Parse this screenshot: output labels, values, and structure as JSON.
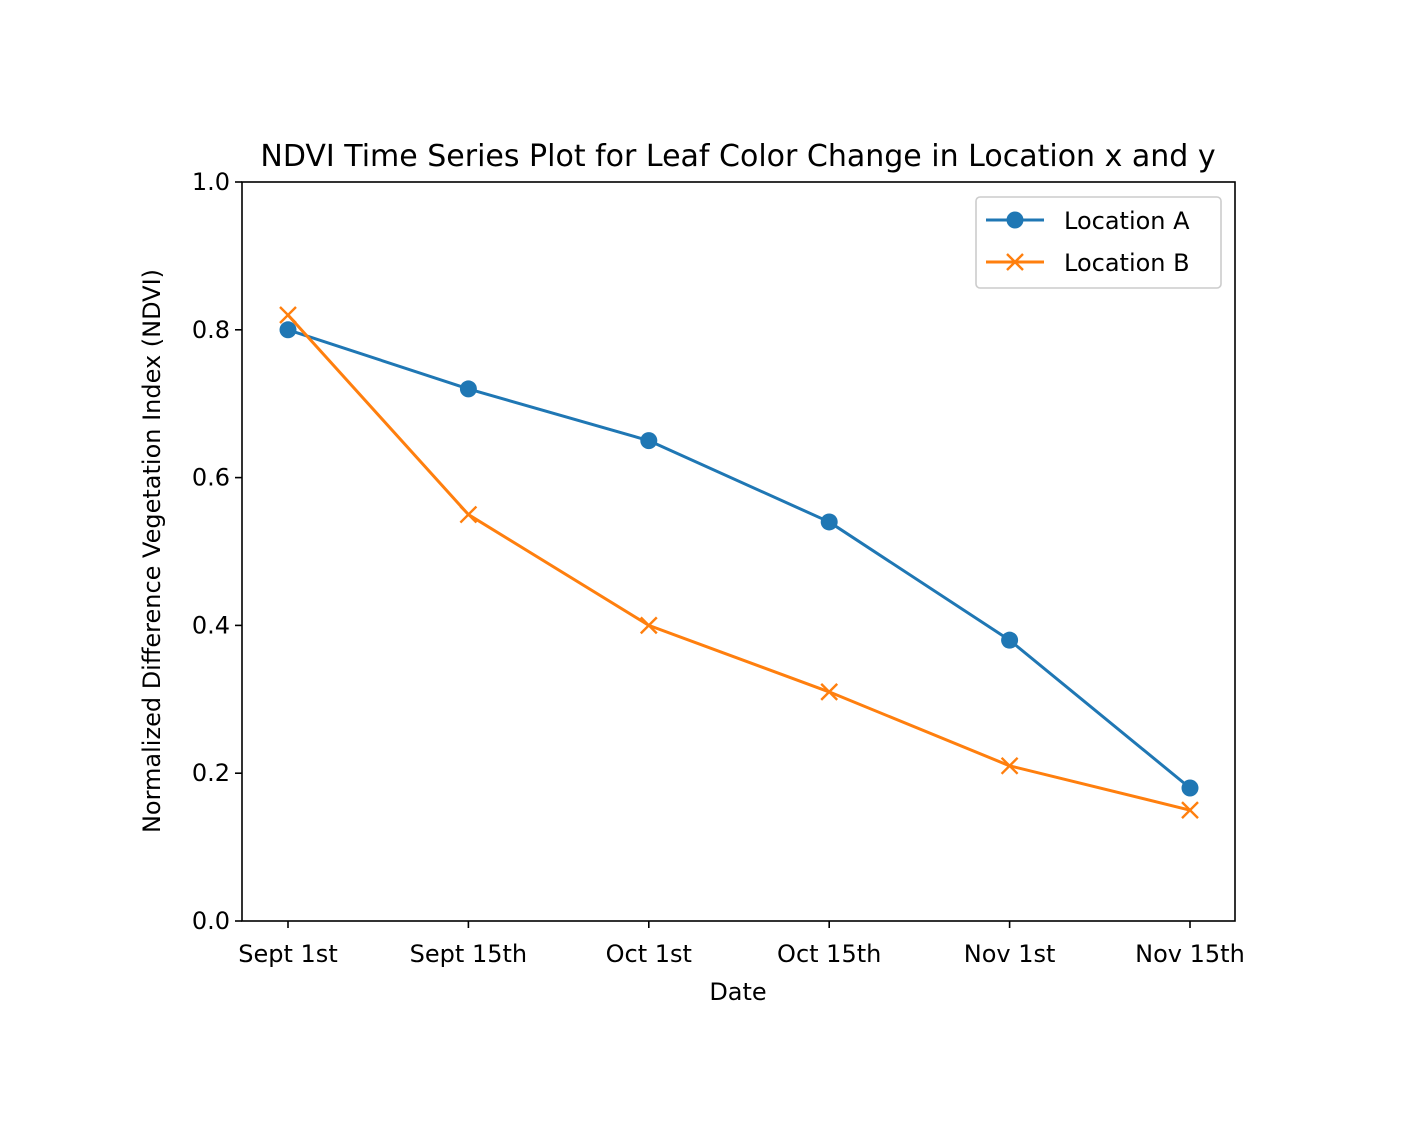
{
  "chart_data": {
    "type": "line",
    "title": "NDVI Time Series Plot for Leaf Color Change in Location x and y",
    "xlabel": "Date",
    "ylabel": "Normalized Difference Vegetation Index (NDVI)",
    "categories": [
      "Sept 1st",
      "Sept 15th",
      "Oct 1st",
      "Oct 15th",
      "Nov 1st",
      "Nov 15th"
    ],
    "ylim": [
      0,
      1.0
    ],
    "yticks": [
      "0.0",
      "0.2",
      "0.4",
      "0.6",
      "0.8",
      "1.0"
    ],
    "grid": false,
    "legend_position": "top-right",
    "series": [
      {
        "name": "Location A",
        "values": [
          0.8,
          0.72,
          0.65,
          0.54,
          0.38,
          0.18
        ],
        "color": "#1f77b4",
        "marker": "circle"
      },
      {
        "name": "Location B",
        "values": [
          0.82,
          0.55,
          0.4,
          0.31,
          0.21,
          0.15
        ],
        "color": "#ff7f0e",
        "marker": "x"
      }
    ]
  }
}
